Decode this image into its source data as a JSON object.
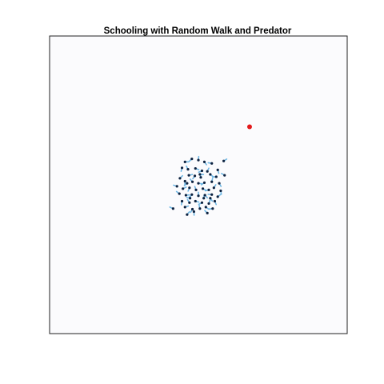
{
  "chart_data": {
    "type": "scatter",
    "title": "Schooling with Random Walk and Predator",
    "xlim": [
      0,
      1
    ],
    "ylim": [
      0,
      1
    ],
    "grid": false,
    "axes_ticks": false,
    "series": [
      {
        "role": "fish",
        "color": "#0d2240",
        "trail_color": "#6fb7e4",
        "points": [
          [
            0.455,
            0.577
          ],
          [
            0.478,
            0.587
          ],
          [
            0.5,
            0.583
          ],
          [
            0.52,
            0.577
          ],
          [
            0.545,
            0.572
          ],
          [
            0.585,
            0.58
          ],
          [
            0.445,
            0.557
          ],
          [
            0.465,
            0.552
          ],
          [
            0.49,
            0.555
          ],
          [
            0.512,
            0.547
          ],
          [
            0.53,
            0.545
          ],
          [
            0.565,
            0.55
          ],
          [
            0.588,
            0.532
          ],
          [
            0.468,
            0.532
          ],
          [
            0.488,
            0.53
          ],
          [
            0.508,
            0.525
          ],
          [
            0.54,
            0.535
          ],
          [
            0.56,
            0.527
          ],
          [
            0.438,
            0.522
          ],
          [
            0.455,
            0.512
          ],
          [
            0.48,
            0.51
          ],
          [
            0.5,
            0.505
          ],
          [
            0.52,
            0.507
          ],
          [
            0.545,
            0.51
          ],
          [
            0.57,
            0.505
          ],
          [
            0.428,
            0.495
          ],
          [
            0.448,
            0.487
          ],
          [
            0.47,
            0.49
          ],
          [
            0.492,
            0.483
          ],
          [
            0.515,
            0.487
          ],
          [
            0.535,
            0.483
          ],
          [
            0.552,
            0.49
          ],
          [
            0.575,
            0.48
          ],
          [
            0.436,
            0.47
          ],
          [
            0.458,
            0.465
          ],
          [
            0.478,
            0.467
          ],
          [
            0.5,
            0.463
          ],
          [
            0.522,
            0.465
          ],
          [
            0.545,
            0.467
          ],
          [
            0.565,
            0.46
          ],
          [
            0.445,
            0.445
          ],
          [
            0.47,
            0.44
          ],
          [
            0.49,
            0.445
          ],
          [
            0.512,
            0.44
          ],
          [
            0.535,
            0.437
          ],
          [
            0.555,
            0.445
          ],
          [
            0.415,
            0.42
          ],
          [
            0.455,
            0.425
          ],
          [
            0.48,
            0.418
          ],
          [
            0.505,
            0.42
          ],
          [
            0.525,
            0.425
          ],
          [
            0.548,
            0.42
          ],
          [
            0.462,
            0.4
          ],
          [
            0.485,
            0.41
          ],
          [
            0.53,
            0.405
          ],
          [
            0.505,
            0.535
          ],
          [
            0.462,
            0.505
          ],
          [
            0.518,
            0.455
          ],
          [
            0.54,
            0.455
          ],
          [
            0.472,
            0.455
          ]
        ]
      },
      {
        "role": "predator",
        "color": "#e31a1c",
        "points": [
          [
            0.672,
            0.695
          ]
        ]
      }
    ]
  }
}
